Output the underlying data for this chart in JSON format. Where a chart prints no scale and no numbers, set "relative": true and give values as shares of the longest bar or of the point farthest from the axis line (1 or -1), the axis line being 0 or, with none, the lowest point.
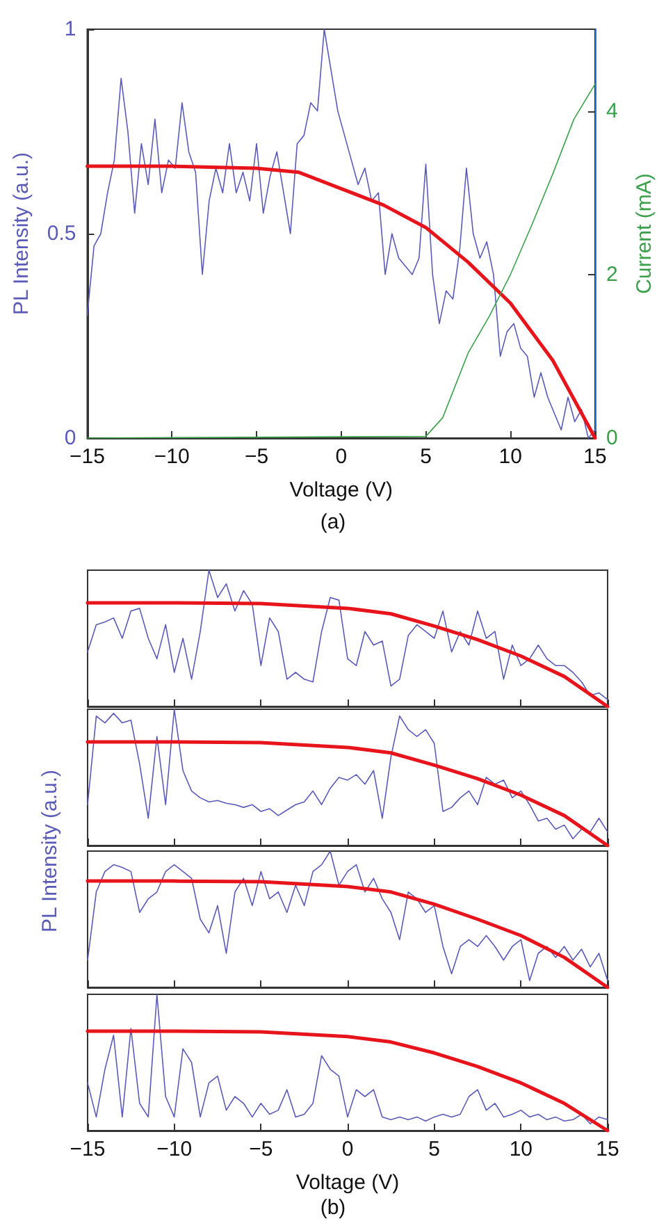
{
  "chart_data": [
    {
      "type": "line",
      "xlabel": "Voltage (V)",
      "ylabel": "PL Intensity (a.u.)",
      "y2label": "Current (mA)",
      "annotations": [
        "(a)"
      ],
      "marker": "none",
      "xlim": [
        -15,
        15
      ],
      "xticks": [
        -15,
        -10,
        -5,
        0,
        5,
        10,
        15
      ],
      "ylim": [
        0,
        1
      ],
      "yticks": [
        0,
        0.5,
        1
      ],
      "y2lim": [
        0,
        5
      ],
      "y2ticks": [
        0,
        2,
        4
      ],
      "x": [
        -15,
        -14.6,
        -14.2,
        -13.8,
        -13.4,
        -13,
        -12.6,
        -12.2,
        -11.8,
        -11.4,
        -11,
        -10.6,
        -10.2,
        -9.8,
        -9.4,
        -9,
        -8.6,
        -8.2,
        -7.8,
        -7.4,
        -7,
        -6.6,
        -6.2,
        -5.8,
        -5.4,
        -5,
        -4.6,
        -4.2,
        -3.8,
        -3.4,
        -3,
        -2.6,
        -2.2,
        -1.8,
        -1.4,
        -1,
        -0.6,
        -0.2,
        0.2,
        0.6,
        1,
        1.4,
        1.8,
        2.2,
        2.6,
        3,
        3.4,
        3.8,
        4.2,
        4.6,
        5,
        5.4,
        5.8,
        6.2,
        6.6,
        7,
        7.4,
        7.8,
        8.2,
        8.6,
        9,
        9.4,
        9.8,
        10.2,
        10.6,
        11,
        11.4,
        11.8,
        12.2,
        12.6,
        13,
        13.4,
        13.8,
        14.2,
        14.6,
        15
      ],
      "series": [
        {
          "color": "#5a5ab8",
          "values": [
            0.3,
            0.47,
            0.5,
            0.6,
            0.68,
            0.88,
            0.75,
            0.55,
            0.72,
            0.62,
            0.78,
            0.6,
            0.68,
            0.66,
            0.82,
            0.7,
            0.65,
            0.4,
            0.58,
            0.66,
            0.6,
            0.72,
            0.6,
            0.65,
            0.58,
            0.72,
            0.55,
            0.64,
            0.7,
            0.6,
            0.5,
            0.72,
            0.74,
            0.82,
            0.8,
            1.0,
            0.9,
            0.8,
            0.74,
            0.68,
            0.62,
            0.66,
            0.58,
            0.6,
            0.4,
            0.5,
            0.44,
            0.42,
            0.4,
            0.44,
            0.67,
            0.4,
            0.28,
            0.36,
            0.34,
            0.46,
            0.66,
            0.5,
            0.44,
            0.48,
            0.4,
            0.2,
            0.26,
            0.28,
            0.22,
            0.2,
            0.1,
            0.16,
            0.1,
            0.06,
            0.02,
            0.1,
            0.04,
            0.07,
            0.0,
            0.02
          ]
        },
        {
          "color": "#e8141c",
          "x": [
            -15,
            -10,
            -5,
            -2.5,
            0,
            2.5,
            5,
            7.5,
            10,
            12.5,
            15
          ],
          "values": [
            0.665,
            0.665,
            0.66,
            0.65,
            0.61,
            0.57,
            0.515,
            0.43,
            0.33,
            0.19,
            0
          ]
        },
        {
          "color": "#3aa04a",
          "axis": "y2",
          "x": [
            -15,
            5,
            6,
            7.5,
            8.75,
            10,
            11.25,
            12.5,
            13.75,
            15
          ],
          "values": [
            0,
            0.02,
            0.25,
            1.04,
            1.49,
            2.0,
            2.6,
            3.23,
            3.9,
            4.33
          ]
        }
      ]
    },
    {
      "type": "line",
      "relative": true,
      "ylabel": "PL Intensity (a.u.)",
      "tick_labels": false,
      "marker": "none",
      "xlim": [
        -15,
        15
      ],
      "xticks": [
        -15,
        -10,
        -5,
        0,
        5,
        10,
        15
      ],
      "x": [
        -15,
        -14.5,
        -14,
        -13.5,
        -13,
        -12.5,
        -12,
        -11.5,
        -11,
        -10.5,
        -10,
        -9.5,
        -9,
        -8.5,
        -8,
        -7.5,
        -7,
        -6.5,
        -6,
        -5.5,
        -5,
        -4.5,
        -4,
        -3.5,
        -3,
        -2.5,
        -2,
        -1.5,
        -1,
        -0.5,
        0,
        0.5,
        1,
        1.5,
        2,
        2.5,
        3,
        3.5,
        4,
        4.5,
        5,
        5.5,
        6,
        6.5,
        7,
        7.5,
        8,
        8.5,
        9,
        9.5,
        10,
        10.5,
        11,
        11.5,
        12,
        12.5,
        13,
        13.5,
        14,
        14.5,
        15
      ],
      "series": [
        {
          "color": "#5a5ab8",
          "values": [
            0.4,
            0.6,
            0.62,
            0.65,
            0.5,
            0.7,
            0.72,
            0.5,
            0.35,
            0.6,
            0.25,
            0.5,
            0.2,
            0.55,
            1.0,
            0.8,
            0.9,
            0.7,
            0.85,
            0.75,
            0.3,
            0.65,
            0.55,
            0.2,
            0.25,
            0.2,
            0.18,
            0.55,
            0.8,
            0.78,
            0.35,
            0.3,
            0.55,
            0.45,
            0.48,
            0.15,
            0.2,
            0.52,
            0.6,
            0.55,
            0.5,
            0.7,
            0.4,
            0.55,
            0.45,
            0.7,
            0.5,
            0.55,
            0.2,
            0.45,
            0.3,
            0.35,
            0.45,
            0.35,
            0.3,
            0.3,
            0.25,
            0.18,
            0.08,
            0.1,
            0.05
          ]
        },
        {
          "color": "#e8141c",
          "x": [
            -15,
            -10,
            -5,
            0,
            2.5,
            5,
            7.5,
            10,
            12.5,
            15
          ],
          "values": [
            0.76,
            0.76,
            0.755,
            0.72,
            0.68,
            0.59,
            0.49,
            0.37,
            0.22,
            0
          ]
        }
      ]
    },
    {
      "type": "line",
      "relative": true,
      "tick_labels": false,
      "marker": "none",
      "xlim": [
        -15,
        15
      ],
      "xticks": [
        -15,
        -10,
        -5,
        0,
        5,
        10,
        15
      ],
      "x": [
        -15,
        -14.5,
        -14,
        -13.5,
        -13,
        -12.5,
        -12,
        -11.5,
        -11,
        -10.5,
        -10,
        -9.5,
        -9,
        -8.5,
        -8,
        -7.5,
        -7,
        -6.5,
        -6,
        -5.5,
        -5,
        -4.5,
        -4,
        -3.5,
        -3,
        -2.5,
        -2,
        -1.5,
        -1,
        -0.5,
        0,
        0.5,
        1,
        1.5,
        2,
        2.5,
        3,
        3.5,
        4,
        4.5,
        5,
        5.5,
        6,
        6.5,
        7,
        7.5,
        8,
        8.5,
        9,
        9.5,
        10,
        10.5,
        11,
        11.5,
        12,
        12.5,
        13,
        13.5,
        14,
        14.5,
        15
      ],
      "series": [
        {
          "color": "#5a5ab8",
          "values": [
            0.3,
            0.95,
            0.9,
            0.97,
            0.9,
            0.92,
            0.6,
            0.2,
            0.8,
            0.3,
            1.0,
            0.55,
            0.4,
            0.35,
            0.32,
            0.33,
            0.31,
            0.3,
            0.28,
            0.3,
            0.25,
            0.27,
            0.22,
            0.26,
            0.3,
            0.32,
            0.4,
            0.3,
            0.42,
            0.5,
            0.48,
            0.52,
            0.45,
            0.55,
            0.2,
            0.65,
            0.95,
            0.85,
            0.8,
            0.85,
            0.75,
            0.25,
            0.28,
            0.35,
            0.4,
            0.3,
            0.5,
            0.45,
            0.48,
            0.35,
            0.4,
            0.3,
            0.18,
            0.2,
            0.12,
            0.15,
            0.05,
            0.12,
            0.1,
            0.2,
            0.1
          ]
        },
        {
          "color": "#e8141c",
          "x": [
            -15,
            -10,
            -5,
            0,
            2.5,
            5,
            7.5,
            10,
            12.5,
            15
          ],
          "values": [
            0.76,
            0.76,
            0.755,
            0.72,
            0.68,
            0.59,
            0.49,
            0.37,
            0.22,
            0
          ]
        }
      ]
    },
    {
      "type": "line",
      "relative": true,
      "tick_labels": false,
      "marker": "none",
      "xlim": [
        -15,
        15
      ],
      "xticks": [
        -15,
        -10,
        -5,
        0,
        5,
        10,
        15
      ],
      "x": [
        -15,
        -14.5,
        -14,
        -13.5,
        -13,
        -12.5,
        -12,
        -11.5,
        -11,
        -10.5,
        -10,
        -9.5,
        -9,
        -8.5,
        -8,
        -7.5,
        -7,
        -6.5,
        -6,
        -5.5,
        -5,
        -4.5,
        -4,
        -3.5,
        -3,
        -2.5,
        -2,
        -1.5,
        -1,
        -0.5,
        0,
        0.5,
        1,
        1.5,
        2,
        2.5,
        3,
        3.5,
        4,
        4.5,
        5,
        5.5,
        6,
        6.5,
        7,
        7.5,
        8,
        8.5,
        9,
        9.5,
        10,
        10.5,
        11,
        11.5,
        12,
        12.5,
        13,
        13.5,
        14,
        14.5,
        15
      ],
      "series": [
        {
          "color": "#5a5ab8",
          "values": [
            0.2,
            0.7,
            0.85,
            0.9,
            0.88,
            0.85,
            0.55,
            0.65,
            0.7,
            0.85,
            0.9,
            0.85,
            0.8,
            0.5,
            0.4,
            0.6,
            0.25,
            0.7,
            0.8,
            0.6,
            0.85,
            0.65,
            0.7,
            0.55,
            0.75,
            0.6,
            0.85,
            0.9,
            1.0,
            0.75,
            0.85,
            0.9,
            0.7,
            0.8,
            0.65,
            0.55,
            0.35,
            0.7,
            0.65,
            0.55,
            0.6,
            0.3,
            0.1,
            0.3,
            0.35,
            0.3,
            0.38,
            0.3,
            0.2,
            0.3,
            0.35,
            0.05,
            0.25,
            0.3,
            0.22,
            0.3,
            0.2,
            0.28,
            0.15,
            0.25,
            0.05
          ]
        },
        {
          "color": "#e8141c",
          "x": [
            -15,
            -10,
            -5,
            0,
            2.5,
            5,
            7.5,
            10,
            12.5,
            15
          ],
          "values": [
            0.78,
            0.78,
            0.775,
            0.74,
            0.7,
            0.61,
            0.5,
            0.38,
            0.22,
            0
          ]
        }
      ]
    },
    {
      "type": "line",
      "relative": true,
      "xlabel": "Voltage (V)",
      "annotations": [
        "(b)"
      ],
      "tick_labels": "x",
      "marker": "none",
      "xlim": [
        -15,
        15
      ],
      "xticks": [
        -15,
        -10,
        -5,
        0,
        5,
        10,
        15
      ],
      "x": [
        -15,
        -14.5,
        -14,
        -13.5,
        -13,
        -12.5,
        -12,
        -11.5,
        -11,
        -10.5,
        -10,
        -9.5,
        -9,
        -8.5,
        -8,
        -7.5,
        -7,
        -6.5,
        -6,
        -5.5,
        -5,
        -4.5,
        -4,
        -3.5,
        -3,
        -2.5,
        -2,
        -1.5,
        -1,
        -0.5,
        0,
        0.5,
        1,
        1.5,
        2,
        2.5,
        3,
        3.5,
        4,
        4.5,
        5,
        5.5,
        6,
        6.5,
        7,
        7.5,
        8,
        8.5,
        9,
        9.5,
        10,
        10.5,
        11,
        11.5,
        12,
        12.5,
        13,
        13.5,
        14,
        14.5,
        15
      ],
      "series": [
        {
          "color": "#5a5ab8",
          "values": [
            0.35,
            0.1,
            0.45,
            0.7,
            0.1,
            0.75,
            0.2,
            0.1,
            1.0,
            0.25,
            0.1,
            0.6,
            0.5,
            0.1,
            0.35,
            0.4,
            0.15,
            0.25,
            0.2,
            0.1,
            0.2,
            0.12,
            0.15,
            0.3,
            0.1,
            0.12,
            0.2,
            0.55,
            0.45,
            0.4,
            0.1,
            0.3,
            0.25,
            0.3,
            0.1,
            0.08,
            0.1,
            0.08,
            0.1,
            0.07,
            0.1,
            0.12,
            0.1,
            0.12,
            0.25,
            0.3,
            0.15,
            0.2,
            0.1,
            0.12,
            0.15,
            0.1,
            0.12,
            0.08,
            0.1,
            0.07,
            0.08,
            0.12,
            0.05,
            0.1,
            0.08
          ]
        },
        {
          "color": "#e8141c",
          "x": [
            -15,
            -10,
            -5,
            0,
            2.5,
            5,
            7.5,
            10,
            12.5,
            15
          ],
          "values": [
            0.73,
            0.73,
            0.725,
            0.69,
            0.65,
            0.57,
            0.47,
            0.35,
            0.2,
            0
          ]
        }
      ]
    }
  ]
}
